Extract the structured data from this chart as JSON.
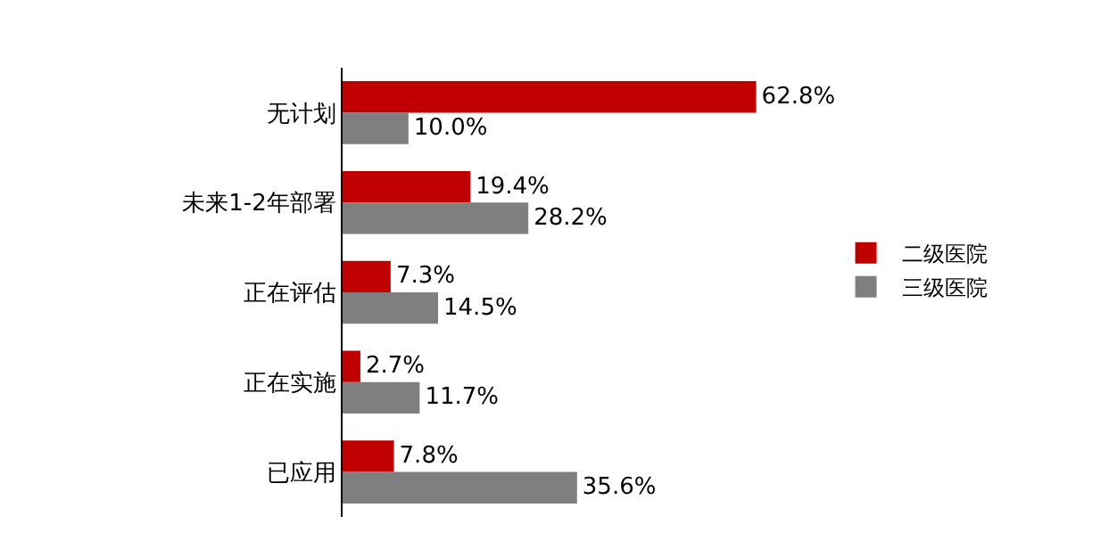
{
  "chart_data": {
    "type": "bar",
    "orientation": "horizontal",
    "categories": [
      "无计划",
      "未来1-2年部署",
      "正在评估",
      "正在实施",
      "已应用"
    ],
    "series": [
      {
        "name": "二级医院",
        "color": "#c00000",
        "values": [
          62.8,
          19.4,
          7.3,
          2.7,
          7.8
        ],
        "value_labels": [
          "62.8%",
          "19.4%",
          "7.3%",
          "2.7%",
          "7.8%"
        ]
      },
      {
        "name": "三级医院",
        "color": "#7f7f7f",
        "values": [
          10.0,
          28.2,
          14.5,
          11.7,
          35.6
        ],
        "value_labels": [
          "10.0%",
          "28.2%",
          "14.5%",
          "11.7%",
          "35.6%"
        ]
      }
    ],
    "tick_labels": "y",
    "legend": "right"
  }
}
